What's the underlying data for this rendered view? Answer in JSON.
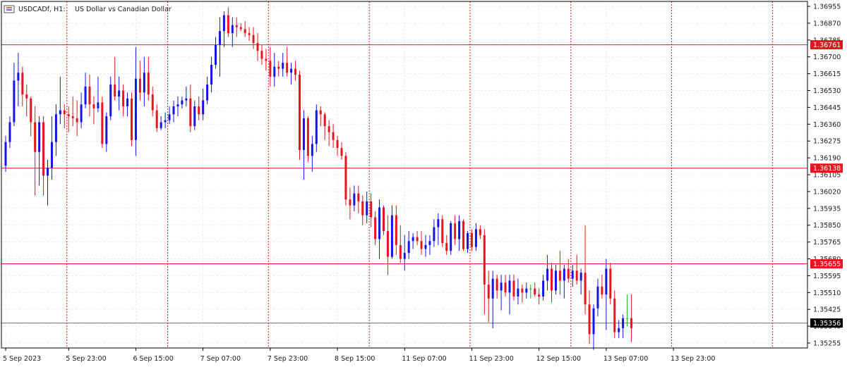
{
  "header": {
    "symbol": "USDCADf, H1:",
    "description": "US Dollar vs Canadian Dollar"
  },
  "colors": {
    "bull": "#1414e6",
    "bear": "#e8141e",
    "doji": "#18b418",
    "level_line": "#e8141e",
    "current_line": "#000000",
    "grid": "#e6e6e6",
    "separator": "#e8141e",
    "axis": "#000000"
  },
  "chart_data": {
    "type": "candlestick",
    "instrument": "USDCADf",
    "timeframe": "H1",
    "ylim": [
      1.3523,
      1.3698
    ],
    "y_ticks": [
      1.35255,
      1.3534,
      1.35425,
      1.3551,
      1.35595,
      1.3568,
      1.35765,
      1.3585,
      1.35935,
      1.3602,
      1.36105,
      1.3619,
      1.36275,
      1.3636,
      1.36445,
      1.3653,
      1.36615,
      1.367,
      1.36785,
      1.3687,
      1.36955
    ],
    "y_tick_labels": [
      "1.35255",
      "1.35340",
      "1.35425",
      "1.35510",
      "1.35595",
      "1.35680",
      "1.35765",
      "1.35850",
      "1.35935",
      "1.36020",
      "1.36105",
      "1.36190",
      "1.36275",
      "1.36360",
      "1.36445",
      "1.36530",
      "1.36615",
      "1.36700",
      "1.36785",
      "1.36870",
      "1.36955"
    ],
    "x_labels": [
      {
        "label": "5 Sep 2023",
        "bar": 0
      },
      {
        "label": "5 Sep 23:00",
        "bar": 15
      },
      {
        "label": "6 Sep 15:00",
        "bar": 31
      },
      {
        "label": "7 Sep 07:00",
        "bar": 47
      },
      {
        "label": "7 Sep 23:00",
        "bar": 63
      },
      {
        "label": "8 Sep 15:00",
        "bar": 79
      },
      {
        "label": "11 Sep 07:00",
        "bar": 95
      },
      {
        "label": "11 Sep 23:00",
        "bar": 111
      },
      {
        "label": "12 Sep 15:00",
        "bar": 127
      },
      {
        "label": "13 Sep 07:00",
        "bar": 143
      },
      {
        "label": "13 Sep 23:00",
        "bar": 159
      }
    ],
    "period_separators": [
      15,
      39,
      63,
      87,
      111,
      135,
      159,
      183
    ],
    "levels": [
      {
        "price": 1.36761,
        "label": "1.36761"
      },
      {
        "price": 1.36138,
        "label": "1.36138"
      },
      {
        "price": 1.35655,
        "label": "1.35655"
      }
    ],
    "current_price": {
      "price": 1.35356,
      "label": "1.35356"
    },
    "grid": true,
    "candles": [
      [
        1.3615,
        1.363,
        1.3612,
        1.3627
      ],
      [
        1.3627,
        1.364,
        1.3624,
        1.3637
      ],
      [
        1.3637,
        1.3667,
        1.3635,
        1.3658
      ],
      [
        1.3658,
        1.3672,
        1.3645,
        1.3662
      ],
      [
        1.3662,
        1.3665,
        1.3645,
        1.3651
      ],
      [
        1.3651,
        1.3656,
        1.364,
        1.3649
      ],
      [
        1.3649,
        1.365,
        1.363,
        1.3637
      ],
      [
        1.3637,
        1.3645,
        1.36,
        1.3622
      ],
      [
        1.3622,
        1.364,
        1.3605,
        1.3637
      ],
      [
        1.3637,
        1.364,
        1.36,
        1.361
      ],
      [
        1.361,
        1.3618,
        1.3595,
        1.3614
      ],
      [
        1.3614,
        1.364,
        1.3608,
        1.3627
      ],
      [
        1.3627,
        1.3646,
        1.362,
        1.3641
      ],
      [
        1.3641,
        1.366,
        1.3636,
        1.3643
      ],
      [
        1.3643,
        1.3646,
        1.3634,
        1.3641
      ],
      [
        1.3641,
        1.3645,
        1.3632,
        1.364
      ],
      [
        1.364,
        1.365,
        1.3635,
        1.3639
      ],
      [
        1.3639,
        1.3648,
        1.363,
        1.3637
      ],
      [
        1.3637,
        1.3652,
        1.3634,
        1.3646
      ],
      [
        1.3646,
        1.3662,
        1.3644,
        1.3655
      ],
      [
        1.3655,
        1.3661,
        1.364,
        1.3646
      ],
      [
        1.3646,
        1.365,
        1.3636,
        1.3644
      ],
      [
        1.3644,
        1.366,
        1.3642,
        1.3647
      ],
      [
        1.3647,
        1.365,
        1.3624,
        1.3626
      ],
      [
        1.3626,
        1.3642,
        1.3622,
        1.364
      ],
      [
        1.364,
        1.366,
        1.3638,
        1.3656
      ],
      [
        1.3656,
        1.367,
        1.3648,
        1.365
      ],
      [
        1.365,
        1.366,
        1.3643,
        1.3653
      ],
      [
        1.3653,
        1.3656,
        1.364,
        1.3645
      ],
      [
        1.3645,
        1.3652,
        1.364,
        1.3649
      ],
      [
        1.3649,
        1.3652,
        1.3625,
        1.3628
      ],
      [
        1.3628,
        1.3675,
        1.362,
        1.3659
      ],
      [
        1.3659,
        1.3668,
        1.3648,
        1.3652
      ],
      [
        1.3652,
        1.367,
        1.3645,
        1.3662
      ],
      [
        1.3662,
        1.367,
        1.3648,
        1.3651
      ],
      [
        1.3651,
        1.3655,
        1.364,
        1.3643
      ],
      [
        1.3643,
        1.3646,
        1.3632,
        1.3634
      ],
      [
        1.3634,
        1.364,
        1.3633,
        1.3637
      ],
      [
        1.3637,
        1.3642,
        1.3634,
        1.3638
      ],
      [
        1.3638,
        1.3645,
        1.3636,
        1.3641
      ],
      [
        1.3641,
        1.3648,
        1.3637,
        1.3645
      ],
      [
        1.3645,
        1.365,
        1.364,
        1.3646
      ],
      [
        1.3646,
        1.365,
        1.3644,
        1.3648
      ],
      [
        1.3648,
        1.3655,
        1.3645,
        1.3649
      ],
      [
        1.3649,
        1.3656,
        1.3632,
        1.3635
      ],
      [
        1.3635,
        1.3648,
        1.3633,
        1.3645
      ],
      [
        1.3645,
        1.365,
        1.3638,
        1.3641
      ],
      [
        1.3641,
        1.3654,
        1.3638,
        1.3648
      ],
      [
        1.3648,
        1.366,
        1.3646,
        1.3656
      ],
      [
        1.3656,
        1.367,
        1.3652,
        1.3666
      ],
      [
        1.3666,
        1.368,
        1.3664,
        1.3676
      ],
      [
        1.3676,
        1.369,
        1.366,
        1.3683
      ],
      [
        1.3683,
        1.3693,
        1.3675,
        1.3691
      ],
      [
        1.3691,
        1.3695,
        1.368,
        1.3682
      ],
      [
        1.3682,
        1.369,
        1.3675,
        1.3686
      ],
      [
        1.3686,
        1.369,
        1.368,
        1.3685
      ],
      [
        1.3685,
        1.3687,
        1.3683,
        1.3684
      ],
      [
        1.3684,
        1.3688,
        1.368,
        1.3682
      ],
      [
        1.3682,
        1.3685,
        1.3678,
        1.3681
      ],
      [
        1.3681,
        1.3685,
        1.3674,
        1.3677
      ],
      [
        1.3677,
        1.3682,
        1.3668,
        1.3673
      ],
      [
        1.3673,
        1.3676,
        1.3666,
        1.3669
      ],
      [
        1.3669,
        1.3674,
        1.3663,
        1.3668
      ],
      [
        1.3668,
        1.3675,
        1.3655,
        1.366
      ],
      [
        1.366,
        1.3672,
        1.3655,
        1.3665
      ],
      [
        1.3665,
        1.3668,
        1.366,
        1.3664
      ],
      [
        1.3664,
        1.3672,
        1.366,
        1.3667
      ],
      [
        1.3667,
        1.3675,
        1.366,
        1.3662
      ],
      [
        1.3662,
        1.3667,
        1.3656,
        1.3664
      ],
      [
        1.3664,
        1.3668,
        1.3658,
        1.3661
      ],
      [
        1.3661,
        1.3663,
        1.3618,
        1.3623
      ],
      [
        1.3623,
        1.3643,
        1.3608,
        1.3639
      ],
      [
        1.3639,
        1.364,
        1.3617,
        1.362
      ],
      [
        1.362,
        1.363,
        1.3612,
        1.3626
      ],
      [
        1.3626,
        1.3646,
        1.3622,
        1.3643
      ],
      [
        1.3643,
        1.3645,
        1.3635,
        1.3641
      ],
      [
        1.3641,
        1.3642,
        1.3628,
        1.3635
      ],
      [
        1.3635,
        1.3638,
        1.3625,
        1.3632
      ],
      [
        1.3632,
        1.3636,
        1.3624,
        1.3628
      ],
      [
        1.3628,
        1.363,
        1.362,
        1.3624
      ],
      [
        1.3624,
        1.3627,
        1.3618,
        1.362
      ],
      [
        1.362,
        1.3622,
        1.3595,
        1.3598
      ],
      [
        1.3598,
        1.3604,
        1.3588,
        1.3595
      ],
      [
        1.3595,
        1.3605,
        1.3592,
        1.3601
      ],
      [
        1.3601,
        1.3605,
        1.3591,
        1.3597
      ],
      [
        1.3597,
        1.36,
        1.3585,
        1.359
      ],
      [
        1.359,
        1.3602,
        1.3586,
        1.3597
      ],
      [
        1.3597,
        1.3601,
        1.3584,
        1.3589
      ],
      [
        1.3589,
        1.3592,
        1.3575,
        1.3578
      ],
      [
        1.3578,
        1.3598,
        1.3568,
        1.3594
      ],
      [
        1.3594,
        1.3595,
        1.358,
        1.3582
      ],
      [
        1.3582,
        1.359,
        1.356,
        1.3569
      ],
      [
        1.3569,
        1.3595,
        1.3568,
        1.359
      ],
      [
        1.359,
        1.3595,
        1.357,
        1.3575
      ],
      [
        1.3575,
        1.3585,
        1.3566,
        1.3568
      ],
      [
        1.3568,
        1.358,
        1.3562,
        1.3571
      ],
      [
        1.3571,
        1.3582,
        1.3568,
        1.3577
      ],
      [
        1.3577,
        1.3581,
        1.3573,
        1.3579
      ],
      [
        1.3579,
        1.3582,
        1.3575,
        1.3577
      ],
      [
        1.3577,
        1.3582,
        1.357,
        1.3573
      ],
      [
        1.3573,
        1.358,
        1.3569,
        1.3575
      ],
      [
        1.3575,
        1.358,
        1.357,
        1.3577
      ],
      [
        1.3577,
        1.3588,
        1.3574,
        1.3584
      ],
      [
        1.3584,
        1.3591,
        1.3575,
        1.3588
      ],
      [
        1.3588,
        1.359,
        1.3574,
        1.3576
      ],
      [
        1.3576,
        1.358,
        1.357,
        1.3572
      ],
      [
        1.3572,
        1.3587,
        1.357,
        1.3586
      ],
      [
        1.3586,
        1.359,
        1.3575,
        1.3578
      ],
      [
        1.3578,
        1.359,
        1.3572,
        1.3587
      ],
      [
        1.3587,
        1.3588,
        1.3572,
        1.3573
      ],
      [
        1.3573,
        1.3582,
        1.3571,
        1.3581
      ],
      [
        1.3581,
        1.3583,
        1.3572,
        1.3574
      ],
      [
        1.3574,
        1.3586,
        1.3572,
        1.3583
      ],
      [
        1.3583,
        1.3585,
        1.3578,
        1.358
      ],
      [
        1.358,
        1.3583,
        1.354,
        1.3555
      ],
      [
        1.3555,
        1.3562,
        1.3536,
        1.3548
      ],
      [
        1.3548,
        1.3562,
        1.3533,
        1.3558
      ],
      [
        1.3558,
        1.356,
        1.3548,
        1.3552
      ],
      [
        1.3552,
        1.356,
        1.3542,
        1.3556
      ],
      [
        1.3556,
        1.356,
        1.3549,
        1.3551
      ],
      [
        1.3551,
        1.356,
        1.354,
        1.3557
      ],
      [
        1.3557,
        1.356,
        1.3547,
        1.3549
      ],
      [
        1.3549,
        1.3558,
        1.3545,
        1.3553
      ],
      [
        1.3553,
        1.3555,
        1.3546,
        1.3551
      ],
      [
        1.3551,
        1.3556,
        1.3548,
        1.3553
      ],
      [
        1.3553,
        1.3555,
        1.3548,
        1.3553
      ],
      [
        1.3553,
        1.3556,
        1.3549,
        1.355
      ],
      [
        1.355,
        1.3553,
        1.3545,
        1.3549
      ],
      [
        1.3549,
        1.356,
        1.3547,
        1.3557
      ],
      [
        1.3557,
        1.357,
        1.3552,
        1.3563
      ],
      [
        1.3563,
        1.3566,
        1.3546,
        1.3552
      ],
      [
        1.3552,
        1.3565,
        1.355,
        1.3562
      ],
      [
        1.3562,
        1.3572,
        1.355,
        1.3557
      ],
      [
        1.3557,
        1.3565,
        1.3548,
        1.3563
      ],
      [
        1.3563,
        1.3568,
        1.3556,
        1.3558
      ],
      [
        1.3558,
        1.3565,
        1.3554,
        1.3562
      ],
      [
        1.3562,
        1.357,
        1.3555,
        1.3557
      ],
      [
        1.3557,
        1.3563,
        1.355,
        1.3561
      ],
      [
        1.3561,
        1.3585,
        1.354,
        1.3545
      ],
      [
        1.3545,
        1.3552,
        1.3525,
        1.353
      ],
      [
        1.353,
        1.3545,
        1.3522,
        1.3543
      ],
      [
        1.3543,
        1.3558,
        1.3539,
        1.3554
      ],
      [
        1.3554,
        1.356,
        1.3548,
        1.355
      ],
      [
        1.355,
        1.3568,
        1.3532,
        1.3563
      ],
      [
        1.3563,
        1.3566,
        1.3545,
        1.3548
      ],
      [
        1.3548,
        1.3552,
        1.3528,
        1.3531
      ],
      [
        1.3531,
        1.3537,
        1.3528,
        1.3533
      ],
      [
        1.3533,
        1.354,
        1.3528,
        1.3538
      ],
      [
        1.3538,
        1.355,
        1.3534,
        1.3538
      ],
      [
        1.3538,
        1.355,
        1.3526,
        1.3533
      ]
    ]
  }
}
